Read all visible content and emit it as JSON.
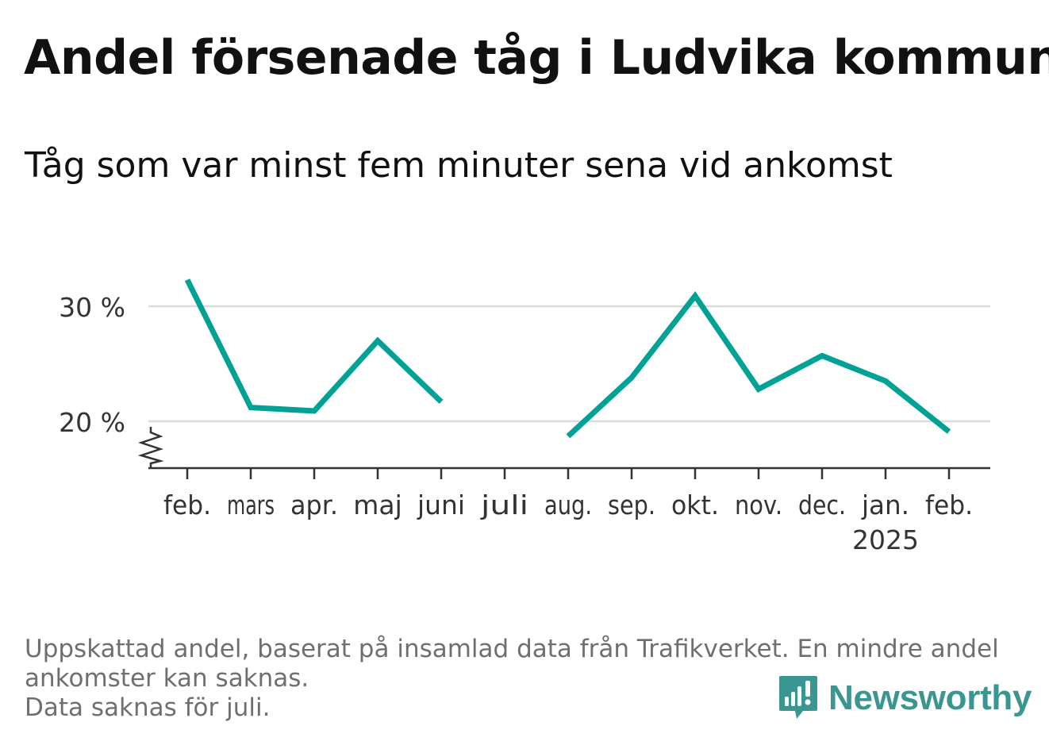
{
  "header": {
    "title": "Andel försenade tåg i Ludvika kommun",
    "subtitle": "Tåg som var minst fem minuter sena vid ankomst"
  },
  "chart_data": {
    "type": "line",
    "categories": [
      "feb.",
      "mars",
      "apr.",
      "maj",
      "juni",
      "juli",
      "aug.",
      "sep.",
      "okt.",
      "nov.",
      "dec.",
      "jan.",
      "feb."
    ],
    "year_label": {
      "category_index": 11,
      "text": "2025"
    },
    "series": [
      {
        "values": [
          32.3,
          21.2,
          20.9,
          27.0,
          21.7,
          null,
          18.7,
          23.8,
          30.9,
          22.8,
          25.7,
          23.5,
          19.1
        ],
        "color": "#00a295"
      }
    ],
    "y_ticks": [
      {
        "value": 20,
        "label": "20 %"
      },
      {
        "value": 30,
        "label": "30 %"
      }
    ],
    "ylim": [
      16,
      34
    ],
    "y_axis_break": true,
    "grid": "horizontal",
    "xlabel": "",
    "ylabel": ""
  },
  "footnote": {
    "line1": "Uppskattad andel, baserat på insamlad data från Trafikverket. En mindre andel",
    "line2": "ankomster kan saknas.",
    "line3": "Data saknas för juli."
  },
  "brand": {
    "name": "Newsworthy",
    "color": "#3a9690",
    "icon": "bar-chart-bubble-icon"
  }
}
